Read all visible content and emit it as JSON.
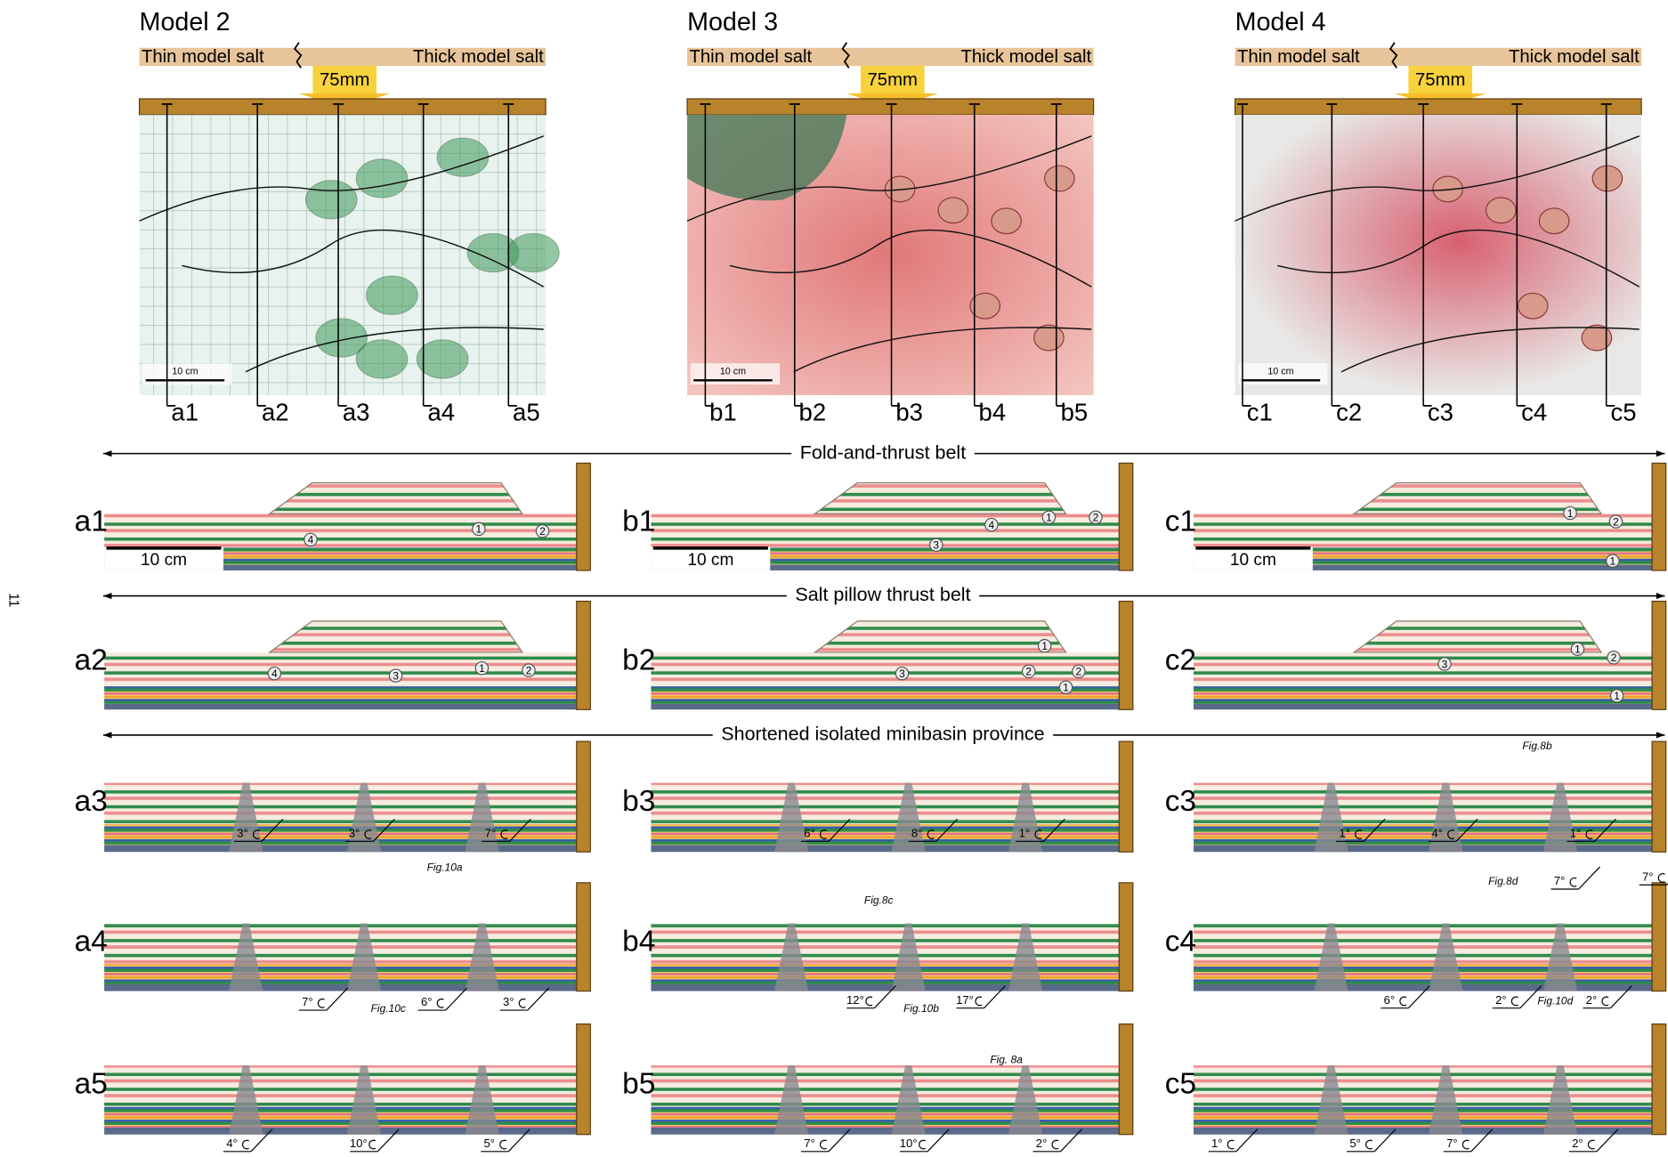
{
  "page_number": "11",
  "models": [
    {
      "title": "Model 2",
      "thin_salt": "Thin model salt",
      "thick_salt": "Thick model salt",
      "displacement": "75mm",
      "map_scale": "10 cm",
      "profiles": [
        "a1",
        "a2",
        "a3",
        "a4",
        "a5"
      ]
    },
    {
      "title": "Model 3",
      "thin_salt": "Thin model salt",
      "thick_salt": "Thick model salt",
      "displacement": "75mm",
      "map_scale": "10 cm",
      "profiles": [
        "b1",
        "b2",
        "b3",
        "b4",
        "b5"
      ]
    },
    {
      "title": "Model 4",
      "thin_salt": "Thin model salt",
      "thick_salt": "Thick model salt",
      "displacement": "75mm",
      "map_scale": "10 cm",
      "profiles": [
        "c1",
        "c2",
        "c3",
        "c4",
        "c5"
      ]
    }
  ],
  "belts": [
    {
      "label": "Fold-and-thrust belt"
    },
    {
      "label": "Salt pillow thrust belt"
    },
    {
      "label": "Shortened isolated minibasin province"
    }
  ],
  "sections": [
    [
      {
        "label": "a1",
        "scale_bar": "10 cm",
        "annotations": [
          "4",
          "1",
          "2"
        ]
      },
      {
        "label": "b1",
        "scale_bar": "10 cm",
        "annotations": [
          "4",
          "1",
          "2",
          "3"
        ]
      },
      {
        "label": "c1",
        "scale_bar": "10 cm",
        "annotations": [
          "1",
          "2",
          "1"
        ]
      }
    ],
    [
      {
        "label": "a2",
        "annotations": [
          "4",
          "3",
          "1",
          "2"
        ]
      },
      {
        "label": "b2",
        "annotations": [
          "1",
          "3",
          "2",
          "2",
          "1"
        ]
      },
      {
        "label": "c2",
        "annotations": [
          "3",
          "1",
          "2",
          "1"
        ]
      }
    ],
    [
      {
        "label": "a3",
        "annotations": [
          "3°",
          "3°",
          "Fig.10a",
          "7°"
        ]
      },
      {
        "label": "b3",
        "annotations": [
          "6°",
          "8°",
          "1°"
        ]
      },
      {
        "label": "c3",
        "annotations": [
          "Fig.8b",
          "1°",
          "4°",
          "1°"
        ]
      }
    ],
    [
      {
        "label": "a4",
        "annotations": [
          "7°",
          "Fig.10c",
          "6°",
          "3°"
        ]
      },
      {
        "label": "b4",
        "annotations": [
          "Fig.8c",
          "12°",
          "Fig.10b",
          "17°"
        ]
      },
      {
        "label": "c4",
        "annotations": [
          "Fig.8d",
          "7°",
          "7°",
          "6°",
          "2°",
          "Fig.10d",
          "2°"
        ]
      }
    ],
    [
      {
        "label": "a5",
        "annotations": [
          "4°",
          "10°",
          "5°"
        ]
      },
      {
        "label": "b5",
        "annotations": [
          "Fig. 8a",
          "7°",
          "10°",
          "2°"
        ]
      },
      {
        "label": "c5",
        "annotations": [
          "1°",
          "5°",
          "7°",
          "2°"
        ]
      }
    ]
  ]
}
